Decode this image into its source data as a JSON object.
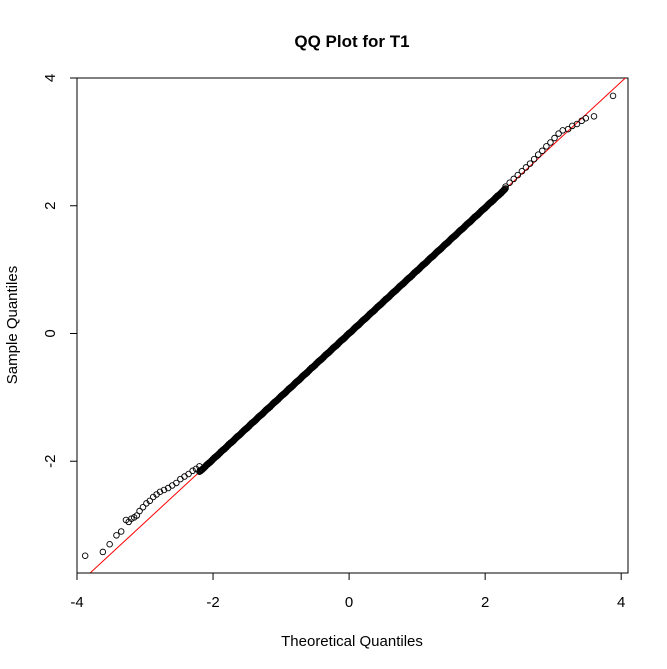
{
  "chart_data": {
    "type": "scatter",
    "title": "QQ Plot for T1",
    "xlabel": "Theoretical Quantiles",
    "ylabel": "Sample Quantiles",
    "xlim": [
      -4.0,
      4.1
    ],
    "ylim": [
      -3.75,
      4.0
    ],
    "xticks": [
      -4,
      -2,
      0,
      2,
      4
    ],
    "xtick_labels": [
      "-4",
      "-2",
      "0",
      "2",
      "4"
    ],
    "yticks": [
      -2,
      0,
      2,
      4
    ],
    "ytick_labels": [
      "-2",
      "0",
      "2",
      "4"
    ],
    "grid": false,
    "legend": "none",
    "point_color": "#000000",
    "line_color": "#ff0000",
    "reference_line": {
      "intercept": 0.0,
      "slope": 0.985
    },
    "sample_size_approx": 2000,
    "body_deviation": 0.006,
    "lower_tail_points": [
      {
        "x": -3.88,
        "y": -3.48
      },
      {
        "x": -3.62,
        "y": -3.42
      },
      {
        "x": -3.52,
        "y": -3.3
      },
      {
        "x": -3.42,
        "y": -3.16
      },
      {
        "x": -3.35,
        "y": -3.1
      },
      {
        "x": -3.28,
        "y": -2.92
      },
      {
        "x": -3.24,
        "y": -2.95
      },
      {
        "x": -3.2,
        "y": -2.9
      },
      {
        "x": -3.16,
        "y": -2.88
      },
      {
        "x": -3.12,
        "y": -2.85
      },
      {
        "x": -3.08,
        "y": -2.78
      },
      {
        "x": -3.03,
        "y": -2.72
      },
      {
        "x": -2.98,
        "y": -2.66
      },
      {
        "x": -2.93,
        "y": -2.62
      },
      {
        "x": -2.88,
        "y": -2.56
      },
      {
        "x": -2.83,
        "y": -2.52
      },
      {
        "x": -2.78,
        "y": -2.48
      },
      {
        "x": -2.72,
        "y": -2.45
      },
      {
        "x": -2.66,
        "y": -2.42
      },
      {
        "x": -2.6,
        "y": -2.38
      },
      {
        "x": -2.54,
        "y": -2.34
      },
      {
        "x": -2.48,
        "y": -2.28
      },
      {
        "x": -2.42,
        "y": -2.24
      },
      {
        "x": -2.36,
        "y": -2.2
      },
      {
        "x": -2.3,
        "y": -2.15
      },
      {
        "x": -2.25,
        "y": -2.12
      },
      {
        "x": -2.2,
        "y": -2.08
      }
    ],
    "upper_tail_points": [
      {
        "x": 2.3,
        "y": 2.3
      },
      {
        "x": 2.36,
        "y": 2.36
      },
      {
        "x": 2.42,
        "y": 2.42
      },
      {
        "x": 2.48,
        "y": 2.48
      },
      {
        "x": 2.54,
        "y": 2.54
      },
      {
        "x": 2.6,
        "y": 2.6
      },
      {
        "x": 2.66,
        "y": 2.66
      },
      {
        "x": 2.72,
        "y": 2.73
      },
      {
        "x": 2.78,
        "y": 2.8
      },
      {
        "x": 2.84,
        "y": 2.86
      },
      {
        "x": 2.9,
        "y": 2.93
      },
      {
        "x": 2.96,
        "y": 2.99
      },
      {
        "x": 3.02,
        "y": 3.06
      },
      {
        "x": 3.08,
        "y": 3.13
      },
      {
        "x": 3.14,
        "y": 3.18
      },
      {
        "x": 3.22,
        "y": 3.2
      },
      {
        "x": 3.28,
        "y": 3.25
      },
      {
        "x": 3.35,
        "y": 3.28
      },
      {
        "x": 3.42,
        "y": 3.33
      },
      {
        "x": 3.48,
        "y": 3.37
      },
      {
        "x": 3.6,
        "y": 3.4
      },
      {
        "x": 3.88,
        "y": 3.72
      }
    ]
  }
}
